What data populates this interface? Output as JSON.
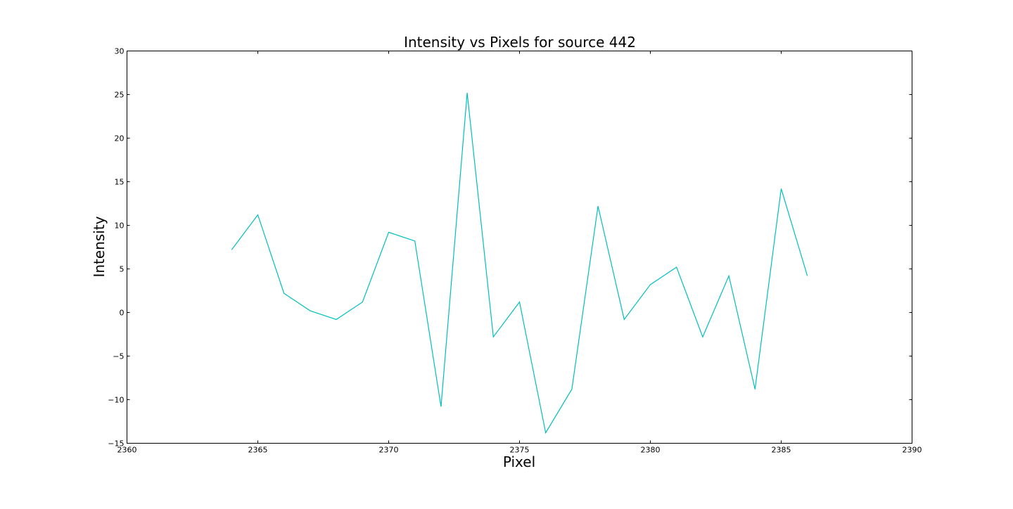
{
  "chart_data": {
    "type": "line",
    "title": "Intensity vs Pixels for source 442",
    "xlabel": "Pixel",
    "ylabel": "Intensity",
    "xlim": [
      2360,
      2390
    ],
    "ylim": [
      -15,
      30
    ],
    "xticks": [
      2360,
      2365,
      2370,
      2375,
      2380,
      2385,
      2390
    ],
    "yticks": [
      -15,
      -10,
      -5,
      0,
      5,
      10,
      15,
      20,
      25,
      30
    ],
    "grid": false,
    "series": [
      {
        "color": "#00bfbf",
        "x": [
          2364,
          2365,
          2366,
          2367,
          2368,
          2369,
          2370,
          2371,
          2372,
          2373,
          2374,
          2375,
          2376,
          2377,
          2378,
          2379,
          2380,
          2381,
          2382,
          2383,
          2384,
          2385,
          2386
        ],
        "y": [
          7.2,
          11.2,
          2.2,
          0.2,
          -0.8,
          1.2,
          9.2,
          8.2,
          -10.8,
          25.2,
          -2.8,
          1.2,
          -13.8,
          -8.8,
          12.2,
          -0.8,
          3.2,
          5.2,
          -2.8,
          4.2,
          -8.8,
          14.2,
          4.2
        ]
      }
    ]
  }
}
